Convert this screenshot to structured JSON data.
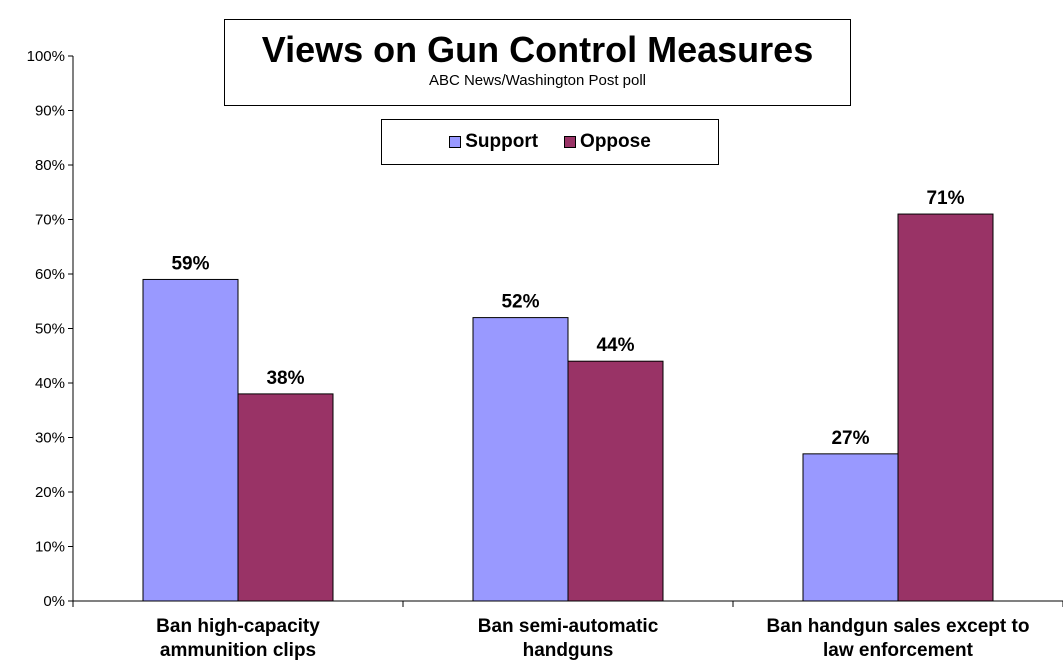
{
  "chart_data": {
    "type": "bar",
    "title": "Views on Gun Control Measures",
    "subtitle": "ABC News/Washington  Post poll",
    "categories": [
      [
        "Ban high-capacity",
        "ammunition clips"
      ],
      [
        "Ban semi-automatic",
        "handguns"
      ],
      [
        "Ban handgun sales except to",
        "law enforcement"
      ]
    ],
    "series": [
      {
        "name": "Support",
        "color": "#9999ff",
        "values": [
          59,
          52,
          27
        ]
      },
      {
        "name": "Oppose",
        "color": "#993366",
        "values": [
          38,
          44,
          71
        ]
      }
    ],
    "ylim": [
      0,
      100
    ],
    "yticks": [
      "0%",
      "10%",
      "20%",
      "30%",
      "40%",
      "50%",
      "60%",
      "70%",
      "80%",
      "90%",
      "100%"
    ],
    "value_suffix": "%",
    "legend_position": "top-center",
    "grid": false
  }
}
